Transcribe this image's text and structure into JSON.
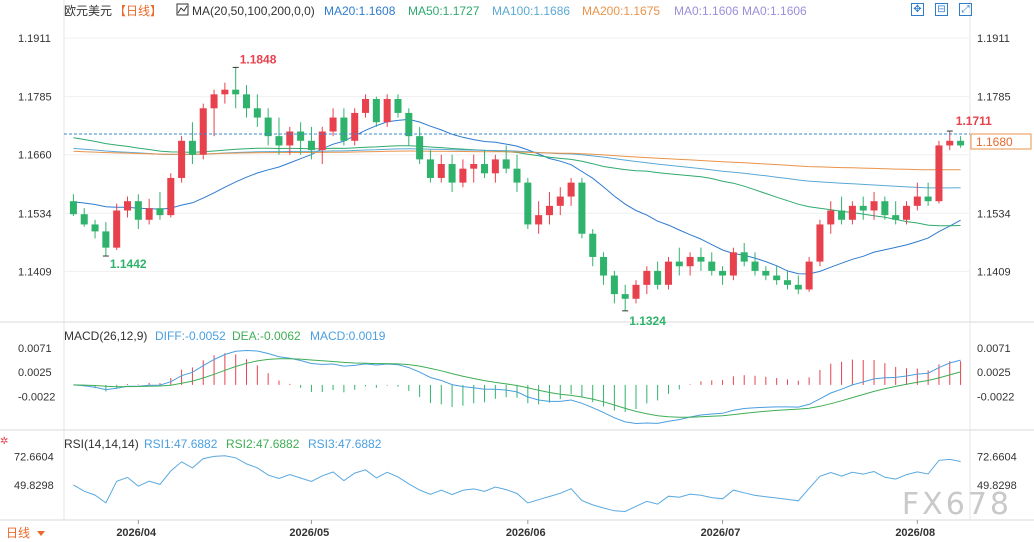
{
  "header": {
    "symbol": "欧元美元",
    "period": "【日线】",
    "ma_label": "MA(20,50,100,200,0,0)",
    "ma_values": [
      {
        "text": "MA20:1.1608",
        "color": "#2e7bcf"
      },
      {
        "text": "MA50:1.1727",
        "color": "#2eaa6e"
      },
      {
        "text": "MA100:1.1686",
        "color": "#5aa9d6"
      },
      {
        "text": "MA200:1.1675",
        "color": "#e9944a"
      },
      {
        "text": "MA0:1.1606",
        "color": "#9b8fd9"
      },
      {
        "text": "MA0:1.1606",
        "color": "#9b8fd9"
      }
    ]
  },
  "price_axis": {
    "left_ticks": [
      "1.1911",
      "1.1785",
      "1.1660",
      "1.1534",
      "1.1409"
    ],
    "right_ticks": [
      "1.1911",
      "1.1785",
      "1.1534",
      "1.1409"
    ],
    "current_price": "1.1680"
  },
  "annotations": {
    "high": "1.1848",
    "low_left": "1.1442",
    "low_bottom": "1.1324",
    "recent_high": "1.1711"
  },
  "macd": {
    "label": "MACD(26,12,9)",
    "diff": "DIFF:-0.0052",
    "dea": "DEA:-0.0062",
    "macd": "MACD:0.0019",
    "ticks": [
      "0.0071",
      "0.0025",
      "-0.0022"
    ]
  },
  "rsi": {
    "label": "RSI(14,14,14)",
    "rsi1": "RSI1:47.6882",
    "rsi2": "RSI2:47.6882",
    "rsi3": "RSI3:47.6882",
    "ticks": [
      "72.6604",
      "49.8298"
    ]
  },
  "x_axis": {
    "dates": [
      "2026/04",
      "2026/05",
      "2026/06",
      "2026/07",
      "2026/08"
    ]
  },
  "footer": {
    "period_tab": "日线"
  },
  "watermark": "FX678",
  "colors": {
    "up": "#e8414e",
    "down": "#2fb36c",
    "ma20": "#2e7bcf",
    "ma50": "#2eaa6e",
    "ma100": "#5aa9d6",
    "ma200": "#e9944a",
    "diff": "#4a9fe0",
    "dea": "#3fae55",
    "rsi": "#5aa9e0"
  },
  "chart_data": {
    "type": "candlestick",
    "series": [
      {
        "name": "MA20",
        "values": []
      },
      {
        "name": "MA50",
        "values": []
      },
      {
        "name": "MA100",
        "values": []
      },
      {
        "name": "MA200",
        "values": []
      }
    ],
    "ylim": [
      1.13,
      1.195
    ],
    "annotated_values": {
      "high": 1.1848,
      "low1": 1.1442,
      "low2": 1.1324,
      "recent_high": 1.1711,
      "last": 1.168
    },
    "candles_ohlc": [
      [
        1.156,
        1.1575,
        1.1528,
        1.1532
      ],
      [
        1.1532,
        1.1545,
        1.1505,
        1.151
      ],
      [
        1.151,
        1.152,
        1.148,
        1.1495
      ],
      [
        1.1495,
        1.1515,
        1.1442,
        1.146
      ],
      [
        1.146,
        1.1555,
        1.1455,
        1.154
      ],
      [
        1.154,
        1.157,
        1.1525,
        1.156
      ],
      [
        1.156,
        1.1575,
        1.15,
        1.152
      ],
      [
        1.152,
        1.1565,
        1.151,
        1.1545
      ],
      [
        1.1545,
        1.158,
        1.152,
        1.153
      ],
      [
        1.153,
        1.162,
        1.1525,
        1.161
      ],
      [
        1.161,
        1.17,
        1.16,
        1.169
      ],
      [
        1.169,
        1.173,
        1.164,
        1.166
      ],
      [
        1.166,
        1.177,
        1.165,
        1.176
      ],
      [
        1.176,
        1.18,
        1.17,
        1.179
      ],
      [
        1.179,
        1.1815,
        1.177,
        1.18
      ],
      [
        1.18,
        1.1848,
        1.176,
        1.179
      ],
      [
        1.179,
        1.181,
        1.174,
        1.176
      ],
      [
        1.176,
        1.179,
        1.172,
        1.174
      ],
      [
        1.174,
        1.176,
        1.168,
        1.17
      ],
      [
        1.17,
        1.174,
        1.166,
        1.168
      ],
      [
        1.168,
        1.172,
        1.166,
        1.171
      ],
      [
        1.171,
        1.173,
        1.166,
        1.169
      ],
      [
        1.169,
        1.172,
        1.165,
        1.167
      ],
      [
        1.167,
        1.172,
        1.164,
        1.171
      ],
      [
        1.171,
        1.176,
        1.17,
        1.174
      ],
      [
        1.174,
        1.176,
        1.168,
        1.169
      ],
      [
        1.169,
        1.176,
        1.168,
        1.175
      ],
      [
        1.175,
        1.179,
        1.174,
        1.178
      ],
      [
        1.178,
        1.1785,
        1.172,
        1.173
      ],
      [
        1.173,
        1.179,
        1.172,
        1.178
      ],
      [
        1.178,
        1.179,
        1.174,
        1.175
      ],
      [
        1.175,
        1.176,
        1.168,
        1.17
      ],
      [
        1.17,
        1.172,
        1.164,
        1.165
      ],
      [
        1.165,
        1.167,
        1.16,
        1.161
      ],
      [
        1.161,
        1.166,
        1.16,
        1.164
      ],
      [
        1.164,
        1.166,
        1.158,
        1.16
      ],
      [
        1.16,
        1.165,
        1.159,
        1.163
      ],
      [
        1.163,
        1.166,
        1.16,
        1.164
      ],
      [
        1.164,
        1.167,
        1.161,
        1.162
      ],
      [
        1.162,
        1.166,
        1.16,
        1.165
      ],
      [
        1.165,
        1.168,
        1.162,
        1.163
      ],
      [
        1.163,
        1.166,
        1.158,
        1.16
      ],
      [
        1.16,
        1.161,
        1.15,
        1.151
      ],
      [
        1.151,
        1.156,
        1.149,
        1.153
      ],
      [
        1.153,
        1.158,
        1.151,
        1.155
      ],
      [
        1.155,
        1.159,
        1.153,
        1.157
      ],
      [
        1.157,
        1.161,
        1.155,
        1.16
      ],
      [
        1.16,
        1.161,
        1.148,
        1.149
      ],
      [
        1.149,
        1.15,
        1.142,
        1.144
      ],
      [
        1.144,
        1.145,
        1.138,
        1.14
      ],
      [
        1.14,
        1.141,
        1.134,
        1.136
      ],
      [
        1.136,
        1.138,
        1.1324,
        1.135
      ],
      [
        1.135,
        1.139,
        1.134,
        1.138
      ],
      [
        1.138,
        1.142,
        1.136,
        1.141
      ],
      [
        1.141,
        1.143,
        1.137,
        1.138
      ],
      [
        1.138,
        1.144,
        1.137,
        1.143
      ],
      [
        1.143,
        1.146,
        1.14,
        1.142
      ],
      [
        1.142,
        1.145,
        1.14,
        1.144
      ],
      [
        1.144,
        1.146,
        1.141,
        1.143
      ],
      [
        1.143,
        1.145,
        1.14,
        1.141
      ],
      [
        1.141,
        1.142,
        1.138,
        1.14
      ],
      [
        1.14,
        1.146,
        1.139,
        1.145
      ],
      [
        1.145,
        1.147,
        1.142,
        1.143
      ],
      [
        1.143,
        1.145,
        1.14,
        1.141
      ],
      [
        1.141,
        1.142,
        1.139,
        1.14
      ],
      [
        1.14,
        1.142,
        1.138,
        1.139
      ],
      [
        1.139,
        1.141,
        1.137,
        1.138
      ],
      [
        1.138,
        1.14,
        1.136,
        1.137
      ],
      [
        1.137,
        1.144,
        1.1365,
        1.143
      ],
      [
        1.143,
        1.152,
        1.142,
        1.151
      ],
      [
        1.151,
        1.156,
        1.149,
        1.154
      ],
      [
        1.154,
        1.157,
        1.151,
        1.152
      ],
      [
        1.152,
        1.156,
        1.151,
        1.155
      ],
      [
        1.155,
        1.157,
        1.152,
        1.154
      ],
      [
        1.154,
        1.158,
        1.152,
        1.156
      ],
      [
        1.156,
        1.157,
        1.152,
        1.153
      ],
      [
        1.153,
        1.156,
        1.151,
        1.152
      ],
      [
        1.152,
        1.156,
        1.151,
        1.155
      ],
      [
        1.155,
        1.16,
        1.154,
        1.157
      ],
      [
        1.157,
        1.16,
        1.155,
        1.156
      ],
      [
        1.156,
        1.169,
        1.1555,
        1.168
      ],
      [
        1.168,
        1.1711,
        1.167,
        1.169
      ],
      [
        1.169,
        1.17,
        1.1675,
        1.168
      ]
    ]
  }
}
